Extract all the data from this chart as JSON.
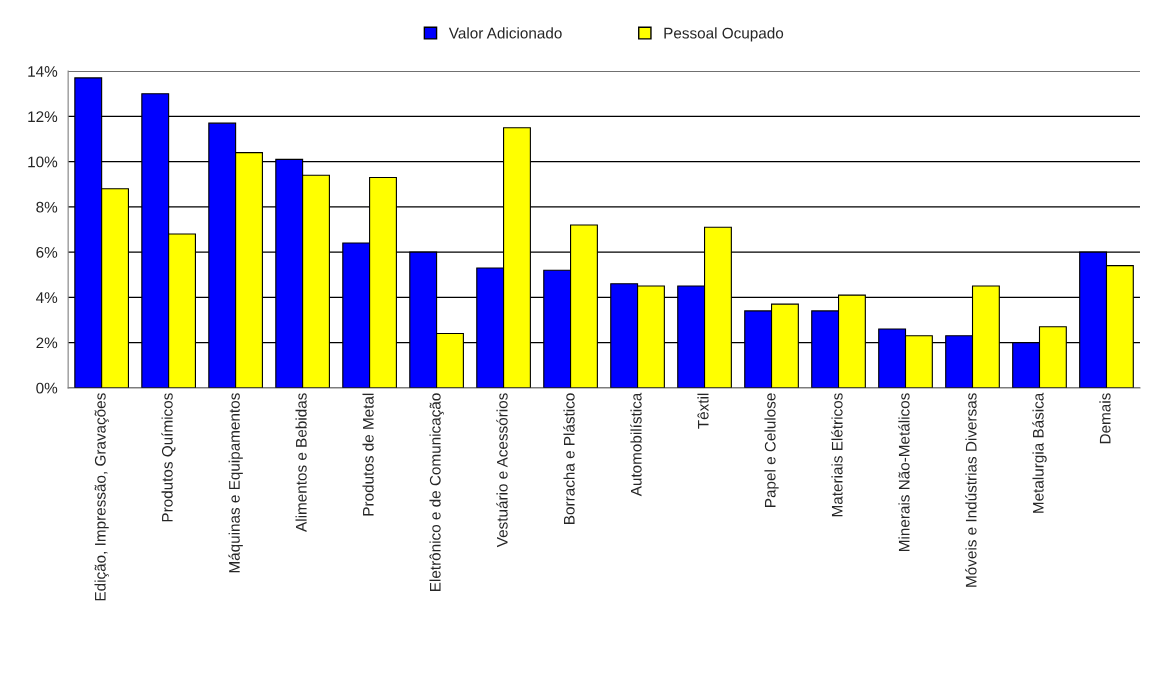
{
  "chart_data": {
    "type": "bar",
    "categories": [
      "Edição, Impressão, Gravações",
      "Produtos Químicos",
      "Máquinas e Equipamentos",
      "Alimentos e Bebidas",
      "Produtos de Metal",
      "Eletrônico e de Comunicação",
      "Vestuário e Acessórios",
      "Borracha e Plástico",
      "Automobilística",
      "Têxtil",
      "Papel e Celulose",
      "Materiais Elétricos",
      "Minerais Não-Metálicos",
      "Móveis e Indústrias Diversas",
      "Metalurgia Básica",
      "Demais"
    ],
    "series": [
      {
        "name": "Valor Adicionado",
        "color": "#0000ff",
        "values": [
          13.7,
          13.0,
          11.7,
          10.1,
          6.4,
          6.0,
          5.3,
          5.2,
          4.6,
          4.5,
          3.4,
          3.4,
          2.6,
          2.3,
          2.0,
          6.0
        ]
      },
      {
        "name": "Pessoal Ocupado",
        "color": "#ffff00",
        "values": [
          8.8,
          6.8,
          10.4,
          9.4,
          9.3,
          2.4,
          11.5,
          7.2,
          4.5,
          7.1,
          3.7,
          4.1,
          2.3,
          4.5,
          2.7,
          5.4
        ]
      }
    ],
    "ylim": [
      0,
      14
    ],
    "yticks": [
      {
        "value": 0,
        "label": "0%"
      },
      {
        "value": 2,
        "label": "2%"
      },
      {
        "value": 4,
        "label": "4%"
      },
      {
        "value": 6,
        "label": "6%"
      },
      {
        "value": 8,
        "label": "8%"
      },
      {
        "value": 10,
        "label": "10%"
      },
      {
        "value": 12,
        "label": "12%"
      },
      {
        "value": 14,
        "label": "14%"
      }
    ],
    "grid": "y",
    "legend": "top"
  }
}
